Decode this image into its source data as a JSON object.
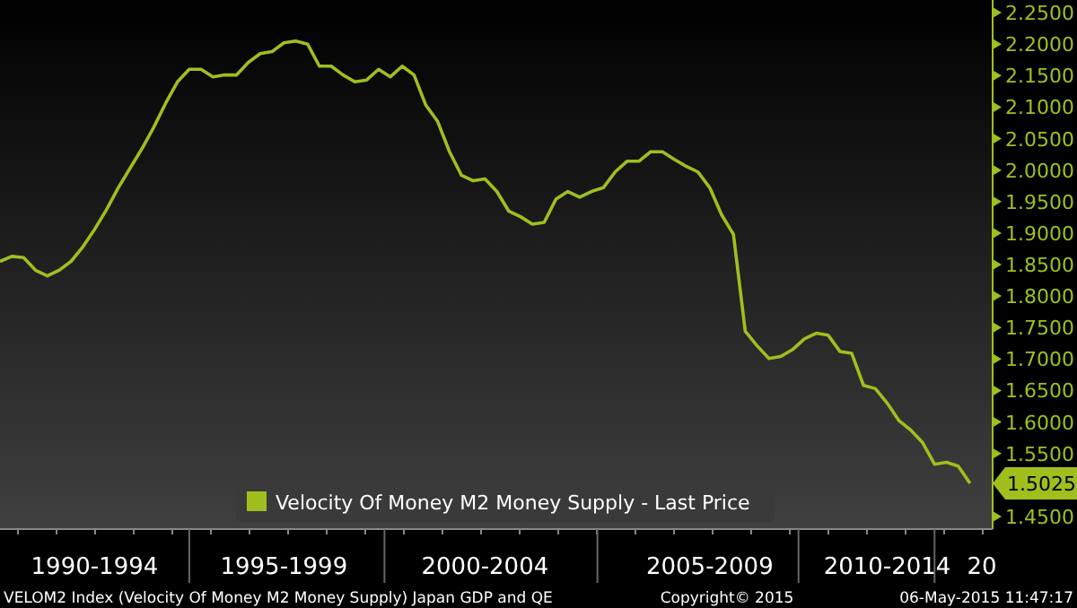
{
  "chart_data": {
    "type": "line",
    "categories": [
      null,
      null,
      null,
      null,
      null,
      null,
      null,
      null,
      "1990-1994",
      null,
      null,
      null,
      null,
      null,
      null,
      null,
      null,
      null,
      null,
      null,
      null,
      null,
      null,
      null,
      "1995-1999",
      null,
      null,
      null,
      null,
      null,
      null,
      null,
      null,
      null,
      null,
      null,
      null,
      null,
      null,
      null,
      null,
      "2000-2004",
      null,
      null,
      null,
      null,
      null,
      null,
      null,
      null,
      null,
      null,
      null,
      null,
      null,
      null,
      null,
      null,
      null,
      null,
      "2005-2009",
      null,
      null,
      null,
      null,
      null,
      null,
      null,
      null,
      null,
      null,
      null,
      null,
      null,
      null,
      "2010-2014",
      null,
      null,
      null,
      null,
      null,
      null,
      null,
      "20"
    ],
    "series": [
      {
        "name": "Velocity Of Money M2 Money Supply - Last Price",
        "color": "#9fbf1f",
        "values": [
          1.855,
          1.863,
          1.861,
          1.841,
          1.832,
          1.841,
          1.855,
          1.878,
          1.906,
          1.937,
          1.972,
          2.003,
          2.034,
          2.068,
          2.106,
          2.14,
          2.16,
          2.16,
          2.148,
          2.151,
          2.151,
          2.171,
          2.185,
          2.188,
          2.202,
          2.205,
          2.2,
          2.165,
          2.165,
          2.151,
          2.14,
          2.143,
          2.16,
          2.148,
          2.165,
          2.151,
          2.103,
          2.077,
          2.029,
          1.992,
          1.983,
          1.986,
          1.966,
          1.935,
          1.926,
          1.914,
          1.917,
          1.954,
          1.966,
          1.957,
          1.966,
          1.972,
          1.997,
          2.014,
          2.014,
          2.029,
          2.029,
          2.017,
          2.006,
          1.997,
          1.972,
          1.929,
          1.898,
          1.744,
          1.721,
          1.701,
          1.704,
          1.715,
          1.732,
          1.741,
          1.738,
          1.712,
          1.709,
          1.658,
          1.653,
          1.63,
          1.602,
          1.587,
          1.567,
          1.533,
          1.536,
          1.53,
          1.5025,
          null
        ],
        "value_labels": [
          null,
          null,
          null,
          null,
          null,
          null,
          null,
          null,
          null,
          null,
          null,
          null,
          null,
          null,
          null,
          null,
          null,
          null,
          null,
          null,
          null,
          null,
          null,
          null,
          null,
          null,
          null,
          null,
          null,
          null,
          null,
          null,
          null,
          null,
          null,
          null,
          null,
          null,
          null,
          null,
          null,
          null,
          null,
          null,
          null,
          null,
          null,
          null,
          null,
          null,
          null,
          null,
          null,
          null,
          null,
          null,
          null,
          null,
          null,
          null,
          null,
          null,
          null,
          null,
          null,
          null,
          null,
          null,
          null,
          null,
          null,
          null,
          null,
          null,
          null,
          null,
          null,
          null,
          null,
          null,
          null,
          null,
          "1.5025",
          null
        ]
      }
    ],
    "ylim": [
      1.43,
      2.27
    ],
    "yticks": [
      {
        "value": 1.45,
        "label": "1.4500"
      },
      {
        "value": 1.55,
        "label": "1.5500"
      },
      {
        "value": 1.6,
        "label": "1.6000"
      },
      {
        "value": 1.65,
        "label": "1.6500"
      },
      {
        "value": 1.7,
        "label": "1.7000"
      },
      {
        "value": 1.75,
        "label": "1.7500"
      },
      {
        "value": 1.8,
        "label": "1.8000"
      },
      {
        "value": 1.85,
        "label": "1.8500"
      },
      {
        "value": 1.9,
        "label": "1.9000"
      },
      {
        "value": 1.95,
        "label": "1.9500"
      },
      {
        "value": 2.0,
        "label": "2.0000"
      },
      {
        "value": 2.05,
        "label": "2.0500"
      },
      {
        "value": 2.1,
        "label": "2.1000"
      },
      {
        "value": 2.15,
        "label": "2.1500"
      },
      {
        "value": 2.2,
        "label": "2.2000"
      },
      {
        "value": 2.25,
        "label": "2.2500"
      }
    ],
    "legend": "bottom",
    "grid": false,
    "marker": "none",
    "line_style": "solid",
    "annotations": [
      "VELOM2 Index (Velocity Of Money M2 Money Supply) Japan GDP and QE",
      "Copyright© 2015",
      "06-May-2015 11:47:17"
    ]
  }
}
